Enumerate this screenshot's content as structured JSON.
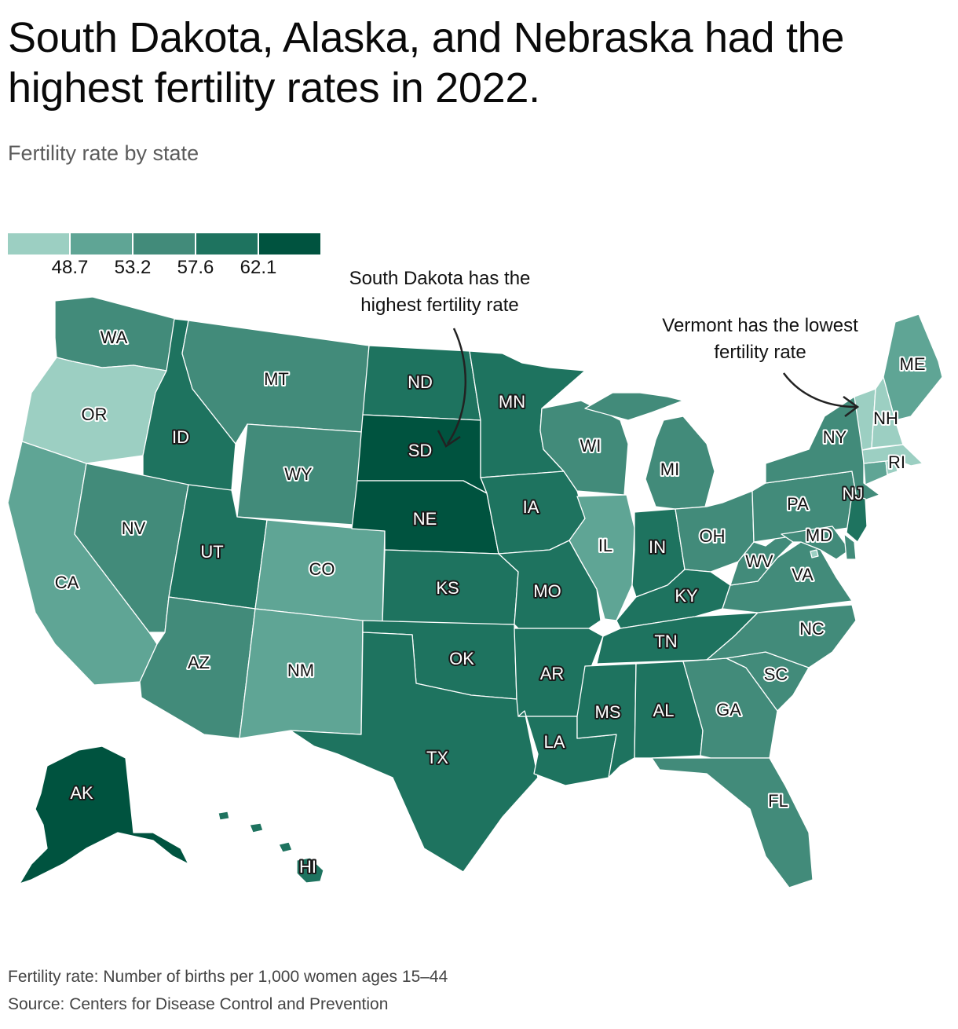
{
  "title": "South Dakota, Alaska, and Nebraska had the highest fertility rates in 2022.",
  "subtitle": "Fertility rate by state",
  "legend": {
    "ticks": [
      "48.7",
      "53.2",
      "57.6",
      "62.1"
    ],
    "colors": [
      "#9ccfc2",
      "#5fa595",
      "#428b7a",
      "#1e735f",
      "#00533f"
    ]
  },
  "annotations": {
    "sd": "South Dakota has the highest fertility rate",
    "vt": "Vermont has the lowest fertility rate"
  },
  "notes": {
    "definition": "Fertility rate: Number of births per 1,000 women ages 15–44",
    "source": "Source: Centers for Disease Control and Prevention"
  },
  "states": [
    {
      "abbr": "WA",
      "bin": 2
    },
    {
      "abbr": "OR",
      "bin": 0
    },
    {
      "abbr": "CA",
      "bin": 1
    },
    {
      "abbr": "ID",
      "bin": 3
    },
    {
      "abbr": "NV",
      "bin": 2
    },
    {
      "abbr": "MT",
      "bin": 2
    },
    {
      "abbr": "WY",
      "bin": 2
    },
    {
      "abbr": "UT",
      "bin": 3
    },
    {
      "abbr": "AZ",
      "bin": 2
    },
    {
      "abbr": "CO",
      "bin": 1
    },
    {
      "abbr": "NM",
      "bin": 1
    },
    {
      "abbr": "ND",
      "bin": 3
    },
    {
      "abbr": "SD",
      "bin": 4
    },
    {
      "abbr": "NE",
      "bin": 4
    },
    {
      "abbr": "KS",
      "bin": 3
    },
    {
      "abbr": "OK",
      "bin": 3
    },
    {
      "abbr": "TX",
      "bin": 3
    },
    {
      "abbr": "MN",
      "bin": 3
    },
    {
      "abbr": "IA",
      "bin": 3
    },
    {
      "abbr": "MO",
      "bin": 3
    },
    {
      "abbr": "AR",
      "bin": 3
    },
    {
      "abbr": "LA",
      "bin": 3
    },
    {
      "abbr": "WI",
      "bin": 2
    },
    {
      "abbr": "IL",
      "bin": 1
    },
    {
      "abbr": "MI",
      "bin": 2
    },
    {
      "abbr": "IN",
      "bin": 3
    },
    {
      "abbr": "OH",
      "bin": 2
    },
    {
      "abbr": "KY",
      "bin": 3
    },
    {
      "abbr": "TN",
      "bin": 3
    },
    {
      "abbr": "MS",
      "bin": 3
    },
    {
      "abbr": "AL",
      "bin": 3
    },
    {
      "abbr": "GA",
      "bin": 2
    },
    {
      "abbr": "FL",
      "bin": 2
    },
    {
      "abbr": "SC",
      "bin": 2
    },
    {
      "abbr": "NC",
      "bin": 2
    },
    {
      "abbr": "VA",
      "bin": 2
    },
    {
      "abbr": "WV",
      "bin": 2
    },
    {
      "abbr": "PA",
      "bin": 2
    },
    {
      "abbr": "NY",
      "bin": 2
    },
    {
      "abbr": "NJ",
      "bin": 3
    },
    {
      "abbr": "MD",
      "bin": 2
    },
    {
      "abbr": "DE",
      "bin": 2
    },
    {
      "abbr": "CT",
      "bin": 1
    },
    {
      "abbr": "RI",
      "bin": 0
    },
    {
      "abbr": "MA",
      "bin": 0
    },
    {
      "abbr": "VT",
      "bin": 0
    },
    {
      "abbr": "NH",
      "bin": 0
    },
    {
      "abbr": "ME",
      "bin": 1
    },
    {
      "abbr": "AK",
      "bin": 4
    },
    {
      "abbr": "HI",
      "bin": 3
    },
    {
      "abbr": "DC",
      "bin": 0
    }
  ]
}
